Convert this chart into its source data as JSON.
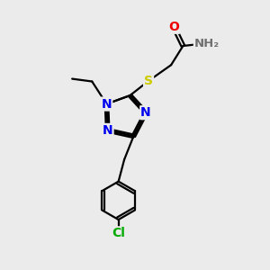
{
  "background_color": "#ebebeb",
  "bond_color": "#000000",
  "bond_width": 1.6,
  "atom_colors": {
    "N": "#0000ee",
    "O": "#ee0000",
    "S": "#cccc00",
    "Cl": "#00aa00",
    "C": "#000000",
    "H": "#707070"
  },
  "font_size": 10,
  "fig_size": [
    3.0,
    3.0
  ],
  "dpi": 100
}
